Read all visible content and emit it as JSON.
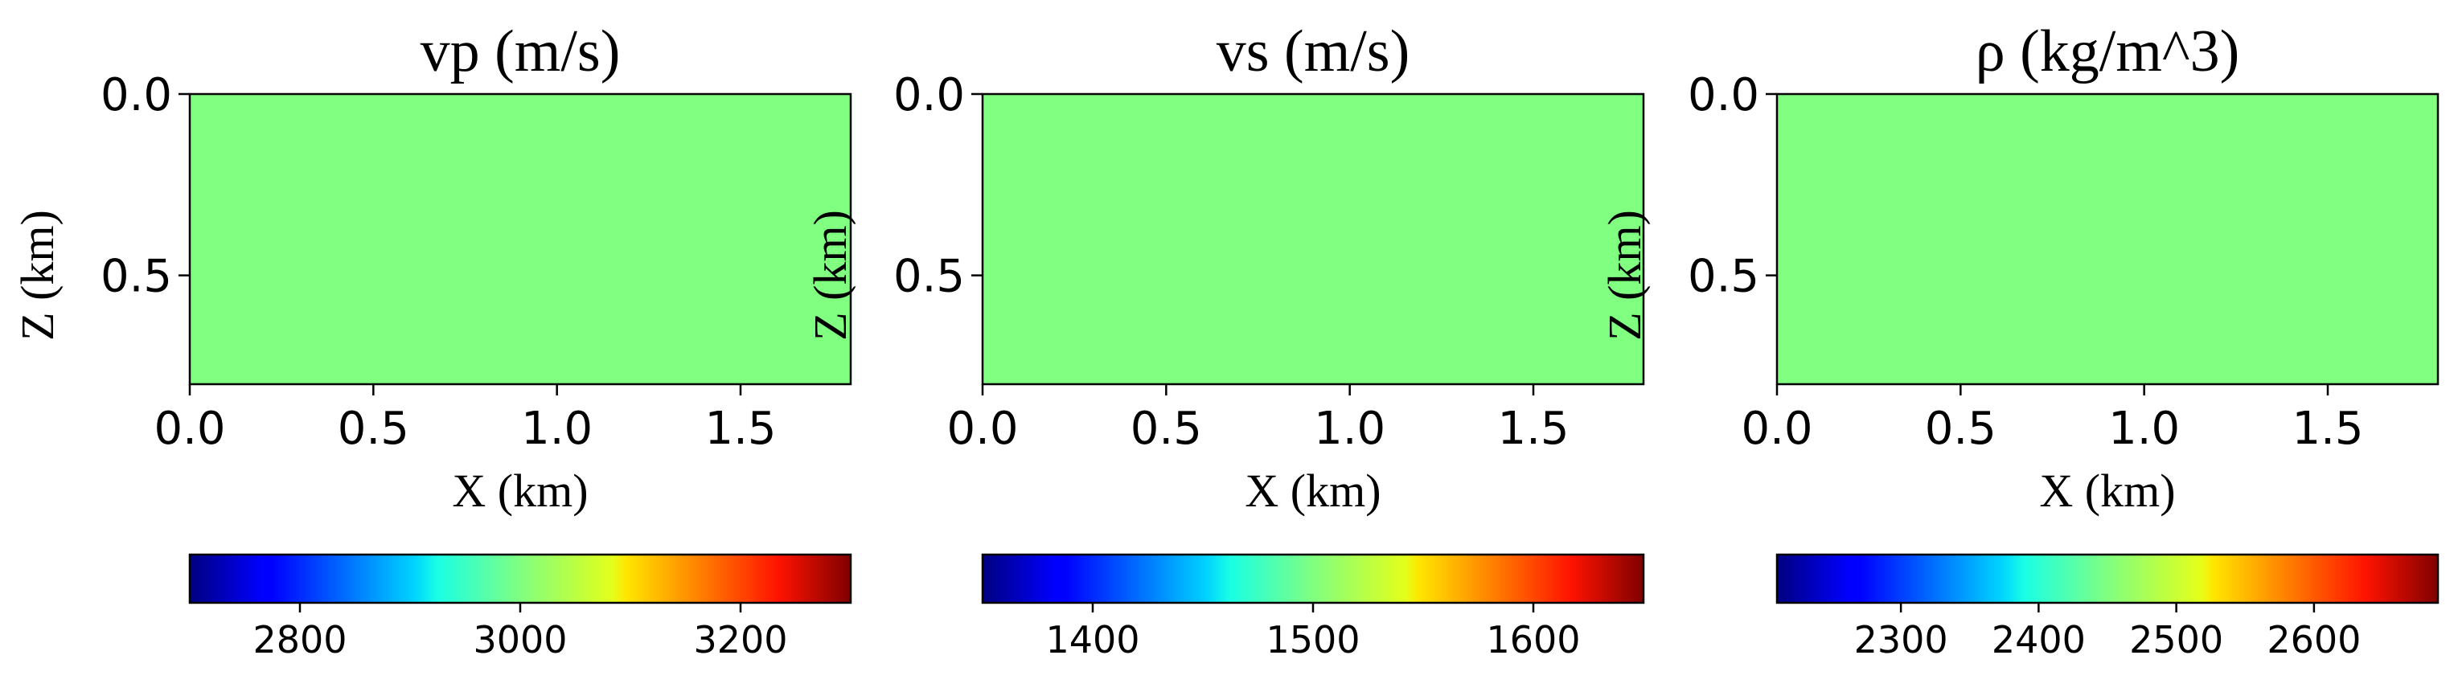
{
  "chart_data": [
    {
      "type": "heatmap",
      "title": "vp (m/s)",
      "xlabel": "X (km)",
      "ylabel": "Z (km)",
      "xlim": [
        0.0,
        1.8
      ],
      "ylim": [
        0.8,
        0.0
      ],
      "x_ticks": [
        "0.0",
        "0.5",
        "1.0",
        "1.5"
      ],
      "y_ticks": [
        "0.0",
        "0.5"
      ],
      "field_value": 3000,
      "field_color": "#80ff80",
      "colormap": "jet",
      "colorbar": {
        "range": [
          2700,
          3300
        ],
        "ticks": [
          "2800",
          "3000",
          "3200"
        ]
      }
    },
    {
      "type": "heatmap",
      "title": "vs (m/s)",
      "xlabel": "X (km)",
      "ylabel": "Z (km)",
      "xlim": [
        0.0,
        1.8
      ],
      "ylim": [
        0.8,
        0.0
      ],
      "x_ticks": [
        "0.0",
        "0.5",
        "1.0",
        "1.5"
      ],
      "y_ticks": [
        "0.0",
        "0.5"
      ],
      "field_value": 1500,
      "field_color": "#80ff80",
      "colormap": "jet",
      "colorbar": {
        "range": [
          1350,
          1650
        ],
        "ticks": [
          "1400",
          "1500",
          "1600"
        ]
      }
    },
    {
      "type": "heatmap",
      "title": "ρ (kg/m^3)",
      "xlabel": "X (km)",
      "ylabel": "Z (km)",
      "xlim": [
        0.0,
        1.8
      ],
      "ylim": [
        0.8,
        0.0
      ],
      "x_ticks": [
        "0.0",
        "0.5",
        "1.0",
        "1.5"
      ],
      "y_ticks": [
        "0.0",
        "0.5"
      ],
      "field_value": 2450,
      "field_color": "#80ff80",
      "colormap": "jet",
      "colorbar": {
        "range": [
          2210,
          2690
        ],
        "ticks": [
          "2300",
          "2400",
          "2500",
          "2600"
        ]
      }
    }
  ]
}
